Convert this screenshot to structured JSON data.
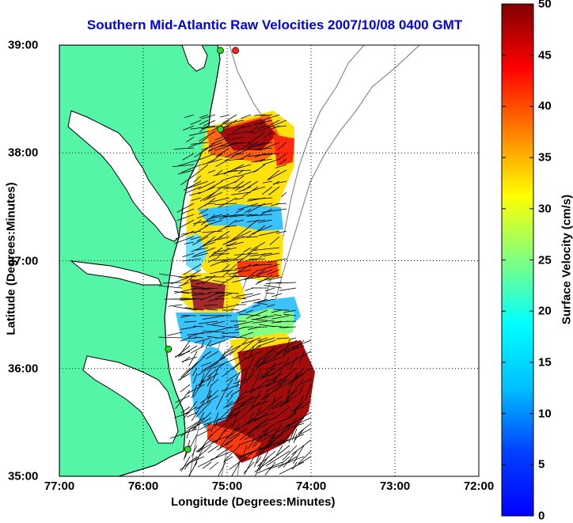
{
  "title": "Southern Mid-Atlantic Raw Velocities 2007/10/08 0400 GMT",
  "axes": {
    "xlabel": "Longitude (Degrees:Minutes)",
    "ylabel": "Latitude (Degrees:Minutes)",
    "xticks": [
      "77:00",
      "76:00",
      "75:00",
      "74:00",
      "73:00",
      "72:00"
    ],
    "yticks": [
      "39:00",
      "38:00",
      "37:00",
      "36:00",
      "35:00"
    ],
    "x_range": [
      -77,
      -72
    ],
    "y_range": [
      35,
      39
    ],
    "grid": "dotted"
  },
  "colorbar": {
    "label": "Surface Velocity (cm/s)",
    "ticks": [
      "50",
      "45",
      "40",
      "35",
      "30",
      "25",
      "20",
      "15",
      "10",
      "5",
      "0"
    ],
    "range": [
      0,
      50
    ],
    "colormap": "jet"
  },
  "colors": {
    "land": "#55f5a8",
    "coastline": "#000000",
    "bathymetry": "#8a8a8a",
    "title": "#0000ee",
    "station": "#22dd22",
    "station_alt": "#ff2222",
    "vectors": "#000000"
  },
  "stations": [
    {
      "lon": -74.9,
      "lat": 38.95,
      "color": "station_alt"
    },
    {
      "lon": -75.08,
      "lat": 38.95,
      "color": "station"
    },
    {
      "lon": -75.08,
      "lat": 38.22,
      "color": "station"
    },
    {
      "lon": -75.7,
      "lat": 36.18,
      "color": "station"
    },
    {
      "lon": -75.47,
      "lat": 35.25,
      "color": "station"
    }
  ]
}
